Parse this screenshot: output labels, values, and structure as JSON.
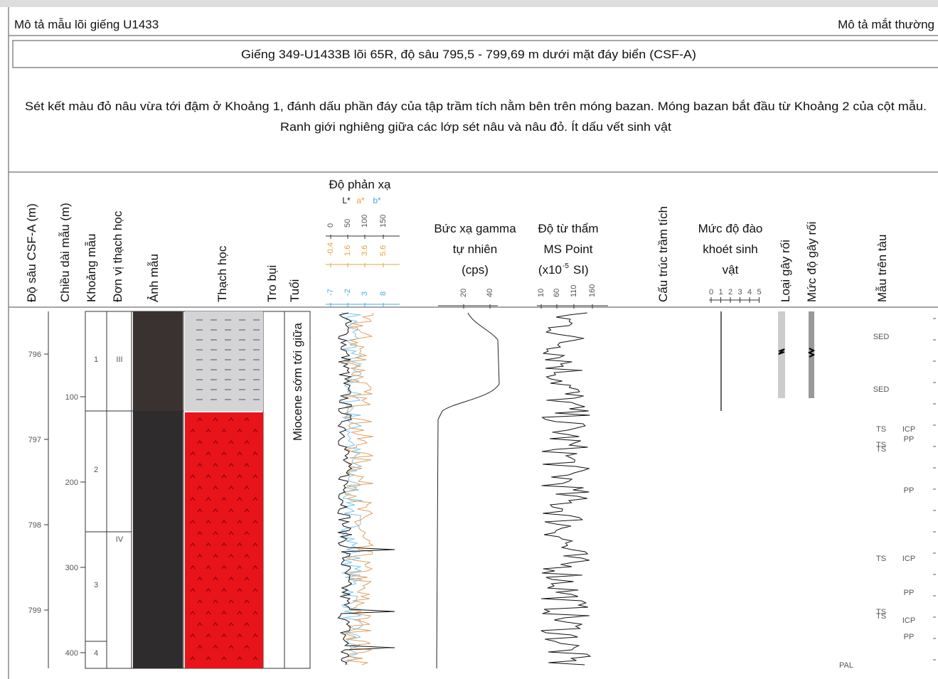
{
  "header": {
    "left": "Mô tả mẫu lõi giếng U1433",
    "right": "Mô tả mắt thường"
  },
  "title": "Giếng 349-U1433B lõi 65R, độ sâu 795,5 - 799,69 m dưới mặt đáy biển (CSF-A)",
  "description": [
    "Sét kết màu đỏ nâu vừa tới đậm ở Khoảng 1, đánh dấu phần đáy của tập trầm tích nằm bên trên móng bazan. Móng bazan bắt đầu từ Khoảng 2 của cột mẫu.",
    "Ranh giới nghiêng giữa các lớp sét nâu và nâu đỏ. Ít dấu vết sinh vật"
  ],
  "columns": {
    "depth": "Độ sâu CSF-A (m)",
    "length": "Chiều dài mẫu (m)",
    "section": "Khoảng mẫu",
    "unit": "Đơn vị thạch học",
    "photo": "Ảnh mẫu",
    "lithology": "Thạch học",
    "ash": "Tro bụi",
    "age": "Tuổi",
    "structures": "Cấu trúc trầm tích",
    "disturbance_type": "Loại gây rối",
    "disturbance_degree": "Mức độ gây rối",
    "samples": "Mẫu trên tàu",
    "reflectance": "Độ phản xạ",
    "gamma": [
      "Bức xạ gamma",
      "tự nhiên",
      "(cps)"
    ],
    "ms": [
      "Độ từ thẩm",
      "MS Point",
      "(x10",
      "-5",
      "SI)"
    ],
    "bioturbation": [
      "Mức độ đào",
      "khoét sinh",
      "vật"
    ]
  },
  "reflectance": {
    "labels": [
      "L*",
      "a*",
      "b*"
    ],
    "L_ticks": [
      0,
      50,
      100,
      150
    ],
    "a_ticks": [
      -0.4,
      1.6,
      3.6,
      5.6
    ],
    "b_ticks": [
      -7,
      -2,
      3,
      8
    ]
  },
  "gamma_ticks": [
    20,
    40
  ],
  "ms_ticks": [
    10,
    60,
    110,
    160
  ],
  "bioturbation_ticks": [
    0,
    1,
    2,
    3,
    4,
    5
  ],
  "depth_ticks": [
    796,
    797,
    798,
    799
  ],
  "length_ticks": [
    100,
    200,
    300,
    400
  ],
  "sections": [
    "1",
    "2",
    "3",
    "4"
  ],
  "units": [
    "III",
    "IV"
  ],
  "age": "Miocene sớm tới giữa",
  "samples": [
    "SED",
    "SED",
    "TS",
    "ICP",
    "PP",
    "TS",
    "TS",
    "PP",
    "TS",
    "ICP",
    "PP",
    "TS",
    "TS",
    "ICP",
    "PP",
    "PAL"
  ]
}
